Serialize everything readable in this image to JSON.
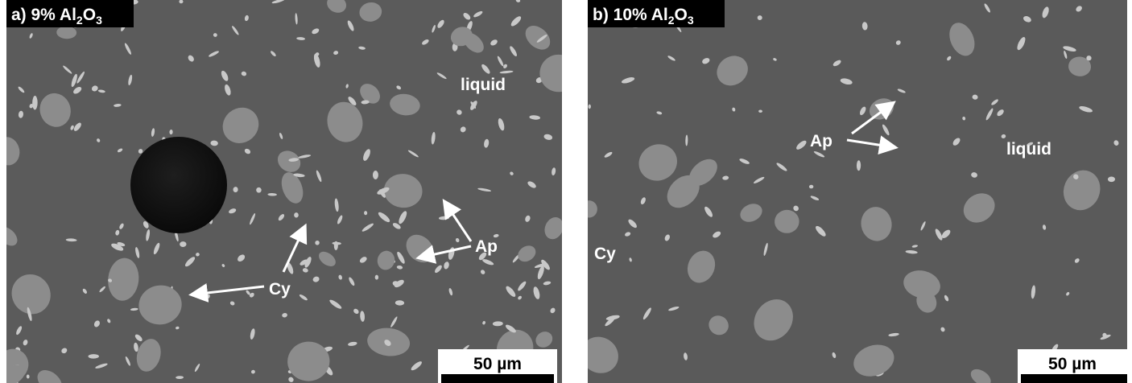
{
  "panels": [
    {
      "label": {
        "text": "a) 9% Al",
        "sub1": "2",
        "mid": "O",
        "sub2": "3"
      },
      "annotations": [
        "liquid",
        "Cy",
        "Ap"
      ],
      "scale_bar": "50 µm"
    },
    {
      "label": {
        "text": "b) 10% Al",
        "sub1": "2",
        "mid": "O",
        "sub2": "3"
      },
      "annotations": [
        "Ap",
        "liquid",
        "Cy"
      ],
      "scale_bar": "50 µm"
    }
  ]
}
